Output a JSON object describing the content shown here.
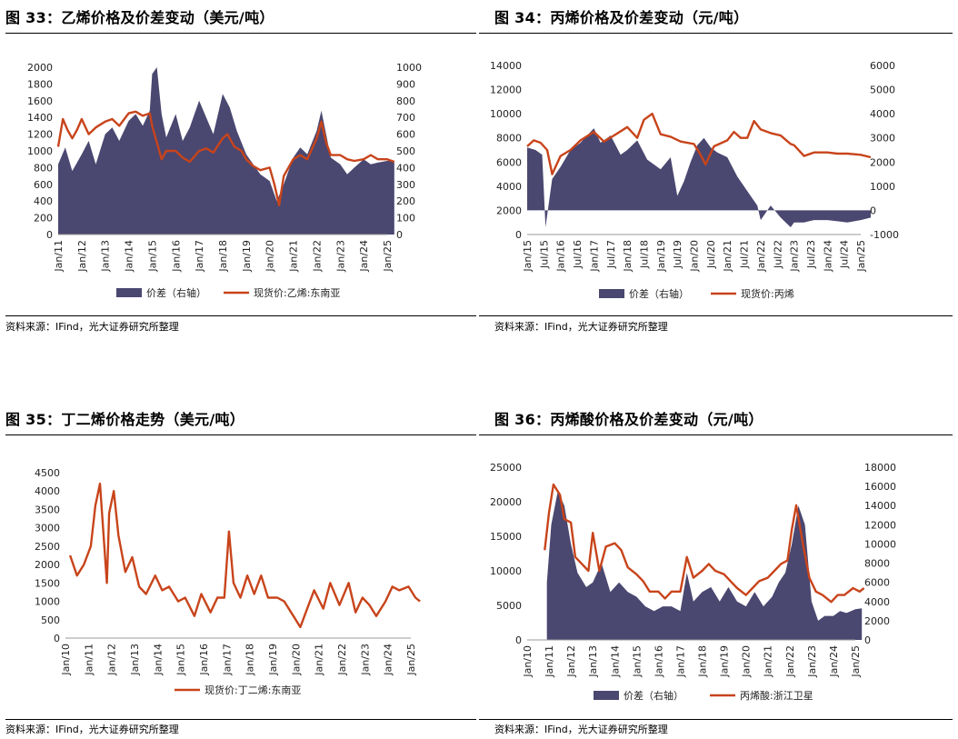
{
  "panels": [
    {
      "title": "图 33：乙烯价格及价差变动（美元/吨）",
      "source": "资料来源：IFind，光大证券研究所整理",
      "chart_data": {
        "type": "bar+line",
        "x_ticks": [
          "Jan/11",
          "Jan/12",
          "Jan/13",
          "Jan/14",
          "Jan/15",
          "Jan/16",
          "Jan/17",
          "Jan/18",
          "Jan/19",
          "Jan/20",
          "Jan/21",
          "Jan/22",
          "Jan/23",
          "Jan/24",
          "Jan/25"
        ],
        "y_left": {
          "min": 0,
          "max": 2000,
          "ticks": [
            "0",
            "200",
            "400",
            "600",
            "800",
            "1000",
            "1200",
            "1400",
            "1600",
            "1800",
            "2000"
          ]
        },
        "y_right": {
          "min": 0,
          "max": 1000,
          "ticks": [
            "0",
            "100",
            "200",
            "300",
            "400",
            "500",
            "600",
            "700",
            "800",
            "900",
            "1000"
          ]
        },
        "series": [
          {
            "name": "价差（右轴）",
            "kind": "area",
            "axis": "right",
            "color": "#4a4770",
            "x": [
              2011,
              2011.3,
              2011.6,
              2012,
              2012.3,
              2012.6,
              2013,
              2013.3,
              2013.6,
              2014,
              2014.3,
              2014.6,
              2014.9,
              2015,
              2015.2,
              2015.4,
              2015.6,
              2016,
              2016.3,
              2016.6,
              2017,
              2017.3,
              2017.6,
              2018,
              2018.3,
              2018.6,
              2019,
              2019.3,
              2019.6,
              2020,
              2020.3,
              2020.6,
              2021,
              2021.3,
              2021.6,
              2022,
              2022.2,
              2022.4,
              2022.6,
              2023,
              2023.3,
              2023.6,
              2024,
              2024.3,
              2024.6,
              2025,
              2025.3
            ],
            "values": [
              420,
              520,
              380,
              480,
              560,
              420,
              600,
              640,
              560,
              680,
              720,
              650,
              740,
              960,
              1000,
              720,
              580,
              720,
              560,
              640,
              800,
              700,
              600,
              840,
              760,
              620,
              480,
              420,
              360,
              320,
              200,
              300,
              460,
              520,
              480,
              620,
              740,
              600,
              460,
              420,
              360,
              400,
              450,
              420,
              430,
              440,
              440
            ]
          },
          {
            "name": "现货价:乙烯:东南亚",
            "kind": "line",
            "axis": "left",
            "color": "#c8441b",
            "x": [
              2011,
              2011.2,
              2011.4,
              2011.6,
              2011.8,
              2012,
              2012.3,
              2012.6,
              2013,
              2013.3,
              2013.6,
              2014,
              2014.3,
              2014.6,
              2014.9,
              2015,
              2015.2,
              2015.4,
              2015.6,
              2016,
              2016.3,
              2016.6,
              2017,
              2017.3,
              2017.6,
              2018,
              2018.2,
              2018.5,
              2018.8,
              2019,
              2019.3,
              2019.6,
              2020,
              2020.2,
              2020.4,
              2020.6,
              2021,
              2021.3,
              2021.6,
              2022,
              2022.2,
              2022.4,
              2022.6,
              2023,
              2023.3,
              2023.6,
              2024,
              2024.3,
              2024.6,
              2025,
              2025.3
            ],
            "values": [
              1050,
              1380,
              1250,
              1150,
              1250,
              1380,
              1200,
              1280,
              1350,
              1380,
              1300,
              1450,
              1470,
              1420,
              1450,
              1300,
              1100,
              900,
              1000,
              1000,
              920,
              870,
              1000,
              1030,
              980,
              1150,
              1200,
              1050,
              1000,
              900,
              820,
              770,
              800,
              600,
              350,
              700,
              900,
              950,
              900,
              1150,
              1350,
              1100,
              950,
              950,
              900,
              880,
              900,
              950,
              900,
              900,
              870
            ]
          }
        ]
      }
    },
    {
      "title": "图 34：丙烯价格及价差变动（元/吨）",
      "source": "资料来源：IFind，光大证券研究所整理",
      "chart_data": {
        "type": "bar+line",
        "x_ticks": [
          "Jan/15",
          "Jul/15",
          "Jan/16",
          "Jul/16",
          "Jan/17",
          "Jul/17",
          "Jan/18",
          "Jul/18",
          "Jan/19",
          "Jul/19",
          "Jan/20",
          "Jul/20",
          "Jan/21",
          "Jul/21",
          "Jan/22",
          "Jul/22",
          "Jan/23",
          "Jul/23",
          "Jan/24",
          "Jul/24",
          "Jan/25"
        ],
        "y_left": {
          "min": 0,
          "max": 14000,
          "ticks": [
            "0",
            "2000",
            "4000",
            "6000",
            "8000",
            "10000",
            "12000",
            "14000"
          ]
        },
        "y_right": {
          "min": -1000,
          "max": 6000,
          "ticks": [
            "-1000",
            "0",
            "1000",
            "2000",
            "3000",
            "4000",
            "5000",
            "6000"
          ]
        },
        "series": [
          {
            "name": "价差（右轴）",
            "kind": "area",
            "axis": "right",
            "color": "#4a4770",
            "x": [
              2015,
              2015.25,
              2015.45,
              2015.55,
              2015.75,
              2016,
              2016.3,
              2016.6,
              2017,
              2017.2,
              2017.5,
              2017.8,
              2018,
              2018.3,
              2018.6,
              2019,
              2019.3,
              2019.5,
              2019.7,
              2019.9,
              2020.1,
              2020.3,
              2020.5,
              2020.7,
              2021,
              2021.3,
              2021.6,
              2021.9,
              2022,
              2022.3,
              2022.6,
              2022.9,
              2023,
              2023.3,
              2023.6,
              2024,
              2024.3,
              2024.6,
              2025,
              2025.3
            ],
            "values": [
              2600,
              2500,
              2300,
              -700,
              1300,
              1800,
              2500,
              2800,
              3400,
              2800,
              3100,
              2300,
              2500,
              2900,
              2100,
              1700,
              2200,
              600,
              1200,
              2000,
              2700,
              3000,
              2600,
              2400,
              2200,
              1400,
              800,
              200,
              -400,
              200,
              -300,
              -700,
              -500,
              -500,
              -400,
              -400,
              -450,
              -500,
              -400,
              -300
            ]
          },
          {
            "name": "现货价:丙烯",
            "kind": "line",
            "axis": "left",
            "color": "#c8441b",
            "x": [
              2015,
              2015.2,
              2015.4,
              2015.6,
              2015.75,
              2016,
              2016.3,
              2016.6,
              2017,
              2017.3,
              2017.6,
              2018,
              2018.3,
              2018.5,
              2018.75,
              2019,
              2019.3,
              2019.6,
              2020,
              2020.2,
              2020.35,
              2020.6,
              2021,
              2021.2,
              2021.4,
              2021.6,
              2021.8,
              2022,
              2022.3,
              2022.6,
              2022.9,
              2023,
              2023.3,
              2023.6,
              2024,
              2024.3,
              2024.6,
              2025,
              2025.3
            ],
            "values": [
              7300,
              7800,
              7600,
              7000,
              5000,
              6500,
              7000,
              7800,
              8500,
              7700,
              8200,
              8900,
              8000,
              9500,
              10000,
              8300,
              8100,
              7700,
              7500,
              6600,
              5800,
              7300,
              7800,
              8500,
              8000,
              8000,
              9400,
              8700,
              8400,
              8200,
              7500,
              7400,
              6500,
              6800,
              6800,
              6700,
              6700,
              6600,
              6400
            ]
          }
        ]
      }
    },
    {
      "title": "图 35：丁二烯价格走势（美元/吨）",
      "source": "资料来源：IFind，光大证券研究所整理",
      "chart_data": {
        "type": "line",
        "x_ticks": [
          "Jan/10",
          "Jan/11",
          "Jan/12",
          "Jan/13",
          "Jan/14",
          "Jan/15",
          "Jan/16",
          "Jan/17",
          "Jan/18",
          "Jan/19",
          "Jan/20",
          "Jan/21",
          "Jan/22",
          "Jan/23",
          "Jan/24",
          "Jan/25"
        ],
        "y_left": {
          "min": 0,
          "max": 4500,
          "ticks": [
            "0",
            "500",
            "1000",
            "1500",
            "2000",
            "2500",
            "3000",
            "3500",
            "4000",
            "4500"
          ]
        },
        "series": [
          {
            "name": "现货价:丁二烯:东南亚",
            "kind": "line",
            "axis": "left",
            "color": "#c8441b",
            "x": [
              2010.2,
              2010.5,
              2010.8,
              2011.1,
              2011.3,
              2011.5,
              2011.8,
              2011.9,
              2012.1,
              2012.3,
              2012.6,
              2012.9,
              2013.2,
              2013.5,
              2013.9,
              2014.2,
              2014.5,
              2014.9,
              2015.2,
              2015.6,
              2015.9,
              2016.3,
              2016.6,
              2016.9,
              2017.1,
              2017.3,
              2017.6,
              2017.9,
              2018.2,
              2018.5,
              2018.8,
              2019.2,
              2019.5,
              2019.9,
              2020.2,
              2020.5,
              2020.8,
              2021.2,
              2021.5,
              2021.9,
              2022.3,
              2022.6,
              2022.9,
              2023.2,
              2023.5,
              2023.9,
              2024.2,
              2024.5,
              2024.9,
              2025.2,
              2025.4
            ],
            "values": [
              2250,
              1700,
              2000,
              2500,
              3600,
              4200,
              1500,
              3400,
              4000,
              2800,
              1800,
              2200,
              1400,
              1200,
              1700,
              1300,
              1400,
              1000,
              1100,
              600,
              1200,
              700,
              1100,
              1100,
              2900,
              1500,
              1100,
              1700,
              1200,
              1700,
              1100,
              1100,
              1000,
              600,
              300,
              800,
              1300,
              800,
              1500,
              900,
              1500,
              700,
              1100,
              900,
              600,
              1000,
              1400,
              1300,
              1400,
              1100,
              1000
            ]
          }
        ]
      }
    },
    {
      "title": "图 36：丙烯酸价格及价差变动（元/吨）",
      "source": "资料来源：IFind，光大证券研究所整理",
      "chart_data": {
        "type": "bar+line",
        "x_ticks": [
          "Jan/10",
          "Jan/11",
          "Jan/12",
          "Jan/13",
          "Jan/14",
          "Jan/15",
          "Jan/16",
          "Jan/17",
          "Jan/18",
          "Jan/19",
          "Jan/20",
          "Jan/21",
          "Jan/22",
          "Jan/23",
          "Jan/24",
          "Jan/25"
        ],
        "y_left": {
          "min": 0,
          "max": 25000,
          "ticks": [
            "0",
            "5000",
            "10000",
            "15000",
            "20000",
            "25000"
          ]
        },
        "y_right": {
          "min": 0,
          "max": 18000,
          "ticks": [
            "0",
            "2000",
            "4000",
            "6000",
            "8000",
            "10000",
            "12000",
            "14000",
            "16000",
            "18000"
          ]
        },
        "series": [
          {
            "name": "价差（右轴）",
            "kind": "area",
            "axis": "right",
            "color": "#4a4770",
            "x": [
              2010.9,
              2011.1,
              2011.4,
              2011.7,
              2012,
              2012.3,
              2012.7,
              2013,
              2013.4,
              2013.8,
              2014.2,
              2014.6,
              2015,
              2015.4,
              2015.8,
              2016.2,
              2016.6,
              2017,
              2017.3,
              2017.6,
              2018,
              2018.4,
              2018.8,
              2019.2,
              2019.6,
              2020,
              2020.4,
              2020.8,
              2021.2,
              2021.5,
              2021.8,
              2022.1,
              2022.4,
              2022.7,
              2023,
              2023.3,
              2023.6,
              2024,
              2024.3,
              2024.6,
              2025,
              2025.3
            ],
            "values": [
              6000,
              12000,
              15500,
              14000,
              10000,
              7000,
              5500,
              6000,
              8000,
              5000,
              6000,
              5000,
              4500,
              3500,
              3000,
              3500,
              3500,
              3000,
              7000,
              4000,
              5000,
              5500,
              4000,
              5500,
              4000,
              3500,
              5000,
              3500,
              4500,
              6000,
              7000,
              10000,
              14000,
              12000,
              4000,
              2000,
              2500,
              2500,
              3000,
              2800,
              3200,
              3300
            ]
          },
          {
            "name": "丙烯酸:浙江卫星",
            "kind": "line",
            "axis": "left",
            "color": "#c8441b",
            "x": [
              2010.8,
              2011,
              2011.2,
              2011.5,
              2011.7,
              2012,
              2012.2,
              2012.5,
              2012.8,
              2013,
              2013.3,
              2013.6,
              2014,
              2014.3,
              2014.6,
              2015,
              2015.3,
              2015.6,
              2016,
              2016.3,
              2016.6,
              2017,
              2017.3,
              2017.6,
              2018,
              2018.3,
              2018.6,
              2019,
              2019.3,
              2019.6,
              2020,
              2020.3,
              2020.6,
              2021,
              2021.3,
              2021.6,
              2021.9,
              2022.1,
              2022.3,
              2022.6,
              2022.9,
              2023.2,
              2023.5,
              2023.9,
              2024.2,
              2024.5,
              2024.9,
              2025.2,
              2025.4
            ],
            "values": [
              13000,
              18500,
              22500,
              21000,
              17500,
              17000,
              12000,
              11000,
              10000,
              15500,
              10000,
              13500,
              14000,
              13000,
              10500,
              9500,
              8500,
              7000,
              7000,
              6000,
              7000,
              7000,
              12000,
              9000,
              10000,
              11000,
              10000,
              9500,
              8500,
              7500,
              6500,
              7500,
              8500,
              9000,
              10000,
              11000,
              11500,
              16000,
              19500,
              14000,
              9000,
              7000,
              6500,
              5500,
              6500,
              6500,
              7500,
              7000,
              7500
            ]
          }
        ]
      }
    }
  ]
}
